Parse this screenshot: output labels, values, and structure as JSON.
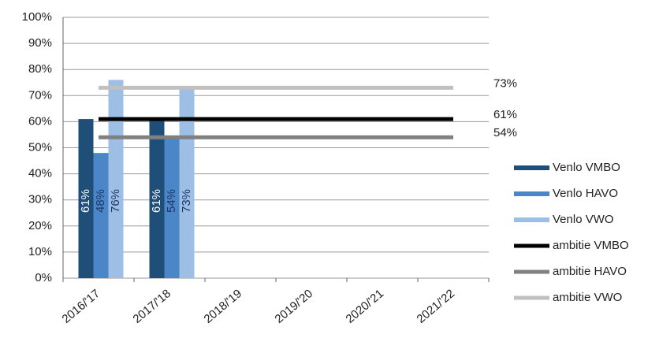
{
  "chart_data": {
    "type": "bar",
    "categories": [
      "2016/'17",
      "2017/'18",
      "2018/'19",
      "2019/'20",
      "2020/'21",
      "2021/'22"
    ],
    "series": [
      {
        "name": "Venlo VMBO",
        "type": "bar",
        "color": "#1f4e79",
        "values": [
          61,
          61,
          null,
          null,
          null,
          null
        ],
        "value_labels": [
          "61%",
          "61%",
          null,
          null,
          null,
          null
        ]
      },
      {
        "name": "Venlo HAVO",
        "type": "bar",
        "color": "#4a86c8",
        "values": [
          48,
          54,
          null,
          null,
          null,
          null
        ],
        "value_labels": [
          "48%",
          "54%",
          null,
          null,
          null,
          null
        ]
      },
      {
        "name": "Venlo VWO",
        "type": "bar",
        "color": "#9dbfe6",
        "values": [
          76,
          73,
          null,
          null,
          null,
          null
        ],
        "value_labels": [
          "76%",
          "73%",
          null,
          null,
          null,
          null
        ]
      },
      {
        "name": "ambitie VMBO",
        "type": "line",
        "color": "#000000",
        "values": [
          61,
          61,
          61,
          61,
          61,
          61
        ],
        "value_labels": [
          null,
          null,
          null,
          null,
          null,
          "61%"
        ]
      },
      {
        "name": "ambitie HAVO",
        "type": "line",
        "color": "#808080",
        "values": [
          54,
          54,
          54,
          54,
          54,
          54
        ],
        "value_labels": [
          null,
          null,
          null,
          null,
          null,
          "54%"
        ]
      },
      {
        "name": "ambitie VWO",
        "type": "line",
        "color": "#c0c0c0",
        "values": [
          73,
          73,
          73,
          73,
          73,
          73
        ],
        "value_labels": [
          null,
          null,
          null,
          null,
          null,
          "73%"
        ]
      }
    ],
    "ylim": [
      0,
      100
    ],
    "yticks": [
      {
        "value": 0,
        "label": "0%"
      },
      {
        "value": 10,
        "label": "10%"
      },
      {
        "value": 20,
        "label": "20%"
      },
      {
        "value": 30,
        "label": "30%"
      },
      {
        "value": 40,
        "label": "40%"
      },
      {
        "value": 50,
        "label": "50%"
      },
      {
        "value": 60,
        "label": "60%"
      },
      {
        "value": 70,
        "label": "70%"
      },
      {
        "value": 80,
        "label": "80%"
      },
      {
        "value": 90,
        "label": "90%"
      },
      {
        "value": 100,
        "label": "100%"
      }
    ],
    "grid": true,
    "legend": "right"
  }
}
